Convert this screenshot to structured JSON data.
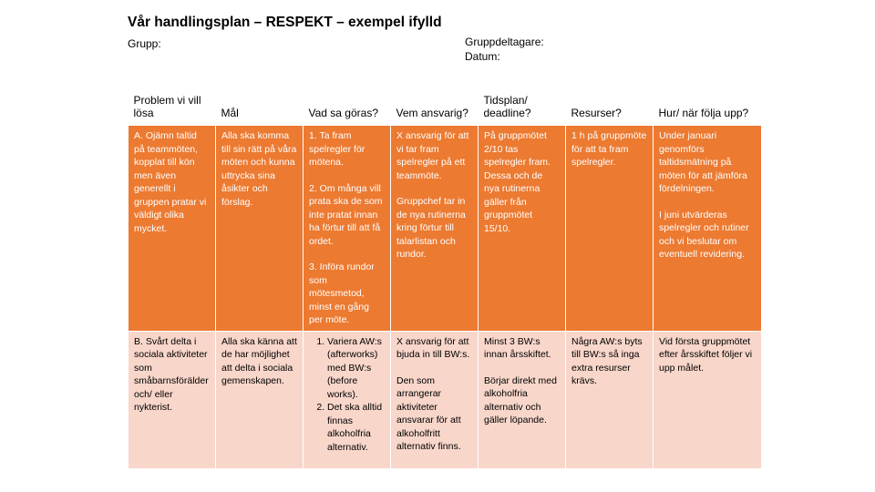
{
  "slide": {
    "title": "Vår handlingsplan – RESPEKT – exempel ifylld",
    "group_label": "Grupp:",
    "participants_label": "Gruppdeltagare:",
    "date_label": "Datum:"
  },
  "table": {
    "headers": [
      "Problem vi vill lösa",
      "Mål",
      "Vad sa göras?",
      "Vem ansvarig?",
      "Tidsplan/ deadline?",
      "Resurser?",
      "Hur/ när följa upp?"
    ],
    "rows": [
      {
        "problem": "A. Ojämn taltid på teammöten, kopplat till kön men även generellt i gruppen pratar vi väldigt olika mycket.",
        "goal": "Alla ska komma till sin rätt på våra möten och kunna uttrycka sina åsikter och förslag.",
        "actions": [
          "1. Ta fram spelregler för mötena.",
          "2. Om många vill prata ska de som inte pratat innan ha förtur till att få ordet.",
          "3. Införa rundor som mötesmetod, minst en gång per möte."
        ],
        "responsible": [
          "X ansvarig för att vi tar fram spelregler på ett teammöte.",
          "Gruppchef tar in de nya rutinerna kring förtur till talarlistan och rundor."
        ],
        "deadline": [
          "På gruppmötet 2/10 tas spelregler fram. Dessa och de nya rutinerna gäller från gruppmötet 15/10."
        ],
        "resources": [
          "1 h på gruppmöte för att ta fram spelregler."
        ],
        "followup": [
          "Under januari genomförs taltidsmätning på möten för att jämföra fördelningen.",
          "I juni utvärderas spelregler och rutiner och vi beslutar om eventuell revidering."
        ]
      },
      {
        "problem": "B. Svårt delta i sociala aktiviteter som småbarnsförälder och/ eller nykterist.",
        "goal": "Alla ska känna att de har möjlighet att delta i sociala gemenskapen.",
        "actions": [
          "Variera AW:s (afterworks) med BW:s (before works).",
          "Det ska alltid finnas alkoholfria alternativ."
        ],
        "responsible": [
          "X ansvarig för att bjuda in till BW:s.",
          "Den som arrangerar aktiviteter ansvarar för att alkoholfritt alternativ finns."
        ],
        "deadline": [
          "Minst 3 BW:s innan årsskiftet.",
          "Börjar direkt med alkoholfria alternativ och gäller löpande."
        ],
        "resources": [
          "Några AW:s byts till BW:s så inga extra resurser krävs."
        ],
        "followup": [
          "Vid första gruppmötet efter årsskiftet följer vi upp målet."
        ]
      }
    ]
  }
}
